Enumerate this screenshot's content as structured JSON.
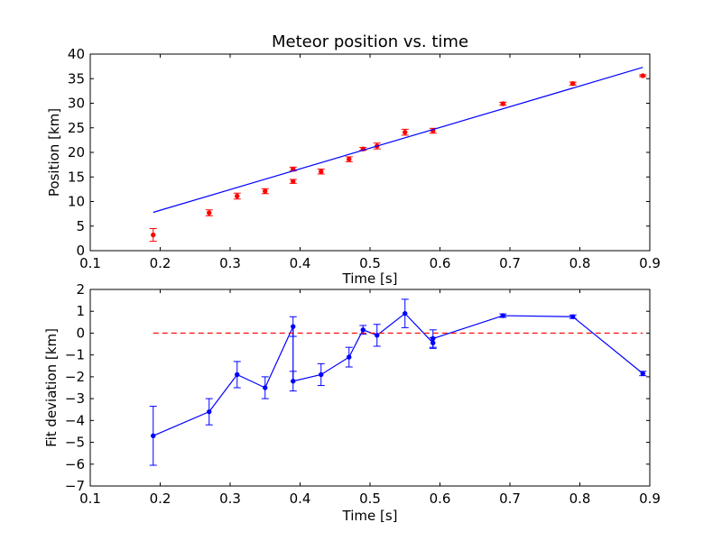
{
  "colors": {
    "points_top": "#ff0000",
    "fit_line": "#0000ff",
    "dev_series": "#0000ff",
    "zero_line": "#ff0000"
  },
  "chart_data": [
    {
      "type": "scatter",
      "title": "Meteor position vs. time",
      "xlabel": "Time [s]",
      "ylabel": "Position [km]",
      "xlim": [
        0.1,
        0.9
      ],
      "ylim": [
        0,
        40
      ],
      "xticks": [
        0.1,
        0.2,
        0.3,
        0.4,
        0.5,
        0.6,
        0.7,
        0.8,
        0.9
      ],
      "yticks": [
        0,
        5,
        10,
        15,
        20,
        25,
        30,
        35,
        40
      ],
      "grid": false,
      "series": [
        {
          "kind": "errorbar",
          "color_key": "points_top",
          "points": [
            {
              "x": 0.19,
              "y": 3.2,
              "err": 1.3
            },
            {
              "x": 0.27,
              "y": 7.7,
              "err": 0.6
            },
            {
              "x": 0.31,
              "y": 11.1,
              "err": 0.6
            },
            {
              "x": 0.35,
              "y": 12.1,
              "err": 0.5
            },
            {
              "x": 0.39,
              "y": 14.1,
              "err": 0.4
            },
            {
              "x": 0.39,
              "y": 16.6,
              "err": 0.4
            },
            {
              "x": 0.43,
              "y": 16.1,
              "err": 0.5
            },
            {
              "x": 0.47,
              "y": 18.6,
              "err": 0.5
            },
            {
              "x": 0.49,
              "y": 20.7,
              "err": 0.3
            },
            {
              "x": 0.51,
              "y": 21.3,
              "err": 0.6
            },
            {
              "x": 0.55,
              "y": 24.1,
              "err": 0.6
            },
            {
              "x": 0.59,
              "y": 24.4,
              "err": 0.5
            },
            {
              "x": 0.69,
              "y": 29.9,
              "err": 0.3
            },
            {
              "x": 0.79,
              "y": 34.0,
              "err": 0.3
            },
            {
              "x": 0.89,
              "y": 35.6,
              "err": 0.2
            }
          ]
        },
        {
          "kind": "line",
          "color_key": "fit_line",
          "x": [
            0.19,
            0.89
          ],
          "y": [
            7.8,
            37.3
          ]
        }
      ]
    },
    {
      "type": "line",
      "title": "",
      "xlabel": "Time [s]",
      "ylabel": "Fit deviation [km]",
      "xlim": [
        0.1,
        0.9
      ],
      "ylim": [
        -7,
        2
      ],
      "xticks": [
        0.1,
        0.2,
        0.3,
        0.4,
        0.5,
        0.6,
        0.7,
        0.8,
        0.9
      ],
      "yticks": [
        -7,
        -6,
        -5,
        -4,
        -3,
        -2,
        -1,
        0,
        1,
        2
      ],
      "yticklabels": [
        "−7",
        "−6",
        "−5",
        "−4",
        "−3",
        "−2",
        "−1",
        "0",
        "1",
        "2"
      ],
      "grid": false,
      "series": [
        {
          "kind": "errorbar-line",
          "color_key": "dev_series",
          "points": [
            {
              "x": 0.19,
              "y": -4.7,
              "err": 1.35
            },
            {
              "x": 0.27,
              "y": -3.6,
              "err": 0.6
            },
            {
              "x": 0.31,
              "y": -1.9,
              "err": 0.6
            },
            {
              "x": 0.35,
              "y": -2.5,
              "err": 0.5
            },
            {
              "x": 0.39,
              "y": 0.3,
              "err": 0.45
            },
            {
              "x": 0.39,
              "y": -2.2,
              "err": 0.45
            },
            {
              "x": 0.43,
              "y": -1.9,
              "err": 0.5
            },
            {
              "x": 0.47,
              "y": -1.1,
              "err": 0.45
            },
            {
              "x": 0.49,
              "y": 0.15,
              "err": 0.2
            },
            {
              "x": 0.51,
              "y": -0.1,
              "err": 0.5
            },
            {
              "x": 0.55,
              "y": 0.9,
              "err": 0.65
            },
            {
              "x": 0.59,
              "y": -0.45,
              "err": 0.25
            },
            {
              "x": 0.59,
              "y": -0.25,
              "err": 0.4
            },
            {
              "x": 0.69,
              "y": 0.8,
              "err": 0.08
            },
            {
              "x": 0.79,
              "y": 0.75,
              "err": 0.08
            },
            {
              "x": 0.89,
              "y": -1.85,
              "err": 0.1
            }
          ]
        },
        {
          "kind": "dashed-line",
          "color_key": "zero_line",
          "x": [
            0.19,
            0.89
          ],
          "y": [
            0,
            0
          ]
        }
      ]
    }
  ]
}
